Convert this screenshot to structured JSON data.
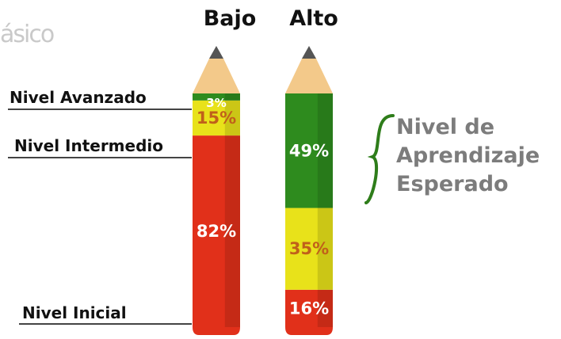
{
  "logo_fragment": "ásico",
  "expected_label": [
    "Nivel de",
    "Aprendizaje",
    "Esperado"
  ],
  "level_labels": {
    "advanced": "Nivel Avanzado",
    "intermediate": "Nivel Intermedio",
    "initial": "Nivel Inicial"
  },
  "colors": {
    "advanced": "#2e8b1e",
    "intermediate": "#e8e21a",
    "initial": "#e1301a",
    "brace": "#2e7d1a",
    "expected_text": "#7c7c7c"
  },
  "chart_data": {
    "type": "bar",
    "stacked": true,
    "orientation": "vertical",
    "categories": [
      "Bajo",
      "Alto"
    ],
    "series": [
      {
        "name": "Nivel Inicial",
        "values": [
          82,
          16
        ],
        "labels": [
          "82%",
          "16%"
        ]
      },
      {
        "name": "Nivel Intermedio",
        "values": [
          15,
          35
        ],
        "labels": [
          "15%",
          "35%"
        ]
      },
      {
        "name": "Nivel Avanzado",
        "values": [
          3,
          49
        ],
        "labels": [
          "3%",
          "49%"
        ]
      }
    ],
    "ylim": [
      0,
      100
    ],
    "grid": false
  }
}
